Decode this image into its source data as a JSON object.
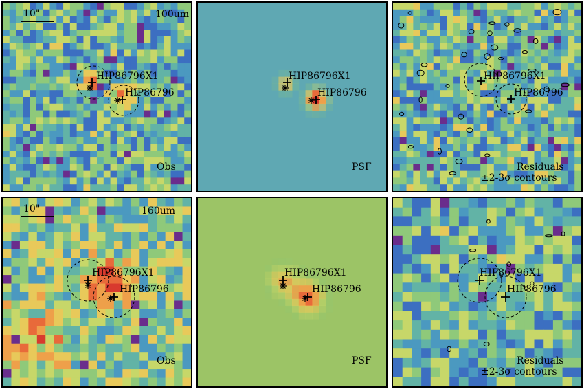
{
  "rows": [
    {
      "band": "100um",
      "scale": "10\"",
      "panels": [
        {
          "kind": "obs",
          "label": "Obs"
        },
        {
          "kind": "psf",
          "label": "PSF"
        },
        {
          "kind": "res",
          "label": "Residuals",
          "label2": "±2-3σ contours"
        }
      ],
      "sources": [
        {
          "name": "HIP86796X1"
        },
        {
          "name": "HIP86796"
        }
      ]
    },
    {
      "band": "160um",
      "scale": "10\"",
      "panels": [
        {
          "kind": "obs",
          "label": "Obs"
        },
        {
          "kind": "psf",
          "label": "PSF"
        },
        {
          "kind": "res",
          "label": "Residuals",
          "label2": "±2-3σ contours"
        }
      ],
      "sources": [
        {
          "name": "HIP86796X1"
        },
        {
          "name": "HIP86796"
        }
      ]
    }
  ],
  "colors": {
    "psf100_bg": "#5fa8b3",
    "psf160_bg": "#9cc466",
    "peak": "#e2572f",
    "palette": [
      "#3b3aa8",
      "#3c6fc1",
      "#4b99c0",
      "#62b3a6",
      "#8fc97a",
      "#c7d769",
      "#e8c95a",
      "#eea04a",
      "#e86a3a",
      "#d83a2e",
      "#6a2d8c"
    ]
  }
}
